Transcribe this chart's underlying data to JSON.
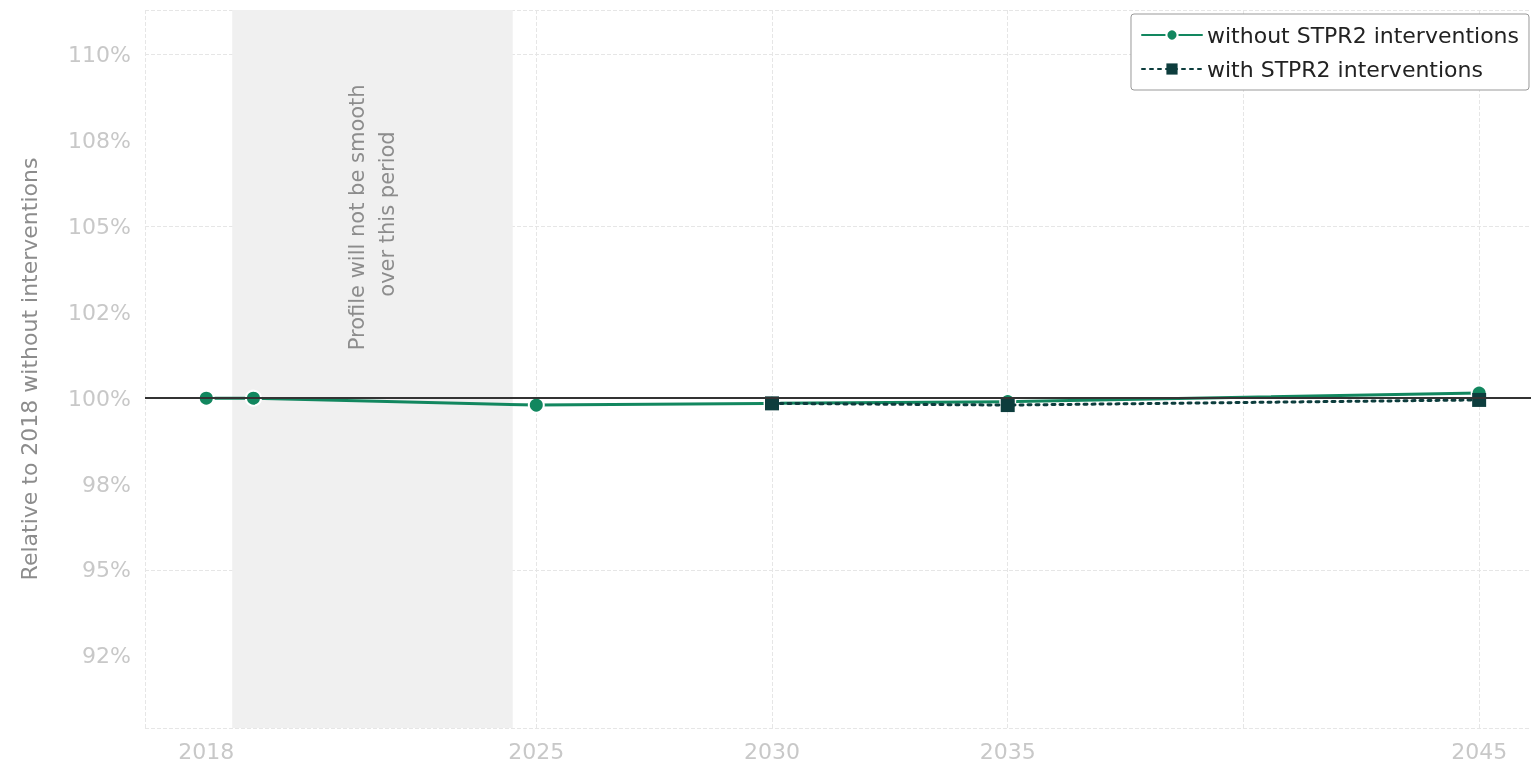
{
  "chart_data": {
    "type": "line",
    "ylabel": "Relative to 2018 without interventions",
    "xlim": [
      2016.7,
      2046.1
    ],
    "xticks": [
      2018,
      2025,
      2030,
      2035,
      2045
    ],
    "ylim": [
      90.4,
      111.3
    ],
    "yticks": [
      {
        "value": 92.5,
        "label": "92%"
      },
      {
        "value": 95,
        "label": "95%"
      },
      {
        "value": 97.5,
        "label": "98%"
      },
      {
        "value": 100,
        "label": "100%"
      },
      {
        "value": 102.5,
        "label": "102%"
      },
      {
        "value": 105,
        "label": "105%"
      },
      {
        "value": 107.5,
        "label": "108%"
      },
      {
        "value": 110,
        "label": "110%"
      }
    ],
    "series": [
      {
        "name": "without STPR2 interventions",
        "color": "#12875f",
        "x": [
          2018,
          2019,
          2025,
          2030,
          2035,
          2045
        ],
        "values": [
          100,
          100,
          99.8,
          99.85,
          99.9,
          100.15
        ],
        "marker": "circle",
        "line_style": "solid"
      },
      {
        "name": "with STPR2 interventions",
        "color": "#0d3d3d",
        "x": [
          2030,
          2035,
          2045
        ],
        "values": [
          99.85,
          99.8,
          99.95
        ],
        "marker": "square",
        "line_style": "dotted"
      }
    ],
    "ref_lines": [
      {
        "axis": "y",
        "value": 100,
        "color": "#333333"
      }
    ],
    "bands": [
      {
        "axis": "x",
        "from": 2018.55,
        "to": 2024.5,
        "label": "Profile will not be smooth over this period",
        "color": "#f0f0f0"
      }
    ],
    "grid": true,
    "legend": "top right"
  }
}
